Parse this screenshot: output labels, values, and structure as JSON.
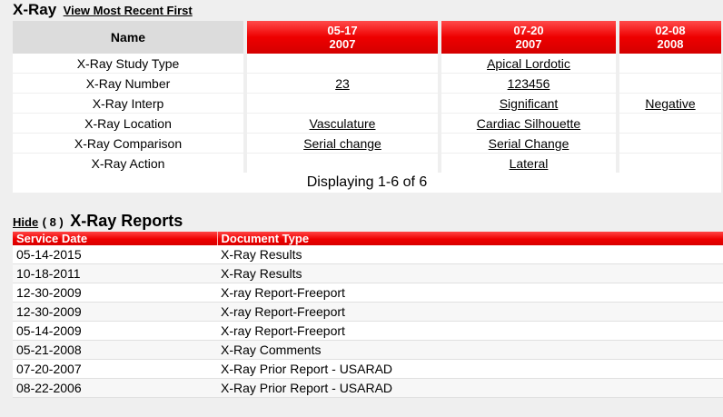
{
  "xray": {
    "title": "X-Ray",
    "view_link": "View Most Recent First"
  },
  "grid": {
    "name_header": "Name",
    "dates": [
      {
        "mmdd": "05-17",
        "year": "2007"
      },
      {
        "mmdd": "07-20",
        "year": "2007"
      },
      {
        "mmdd": "02-08",
        "year": "2008"
      }
    ],
    "rows": [
      {
        "label": "X-Ray Study Type",
        "values": [
          "",
          "Apical Lordotic",
          ""
        ]
      },
      {
        "label": "X-Ray Number",
        "values": [
          "23",
          "123456",
          ""
        ]
      },
      {
        "label": "X-Ray Interp",
        "values": [
          "",
          "Significant",
          "Negative"
        ]
      },
      {
        "label": "X-Ray Location",
        "values": [
          "Vasculature",
          "Cardiac Silhouette",
          ""
        ]
      },
      {
        "label": "X-Ray Comparison",
        "values": [
          "Serial change",
          "Serial Change",
          ""
        ]
      },
      {
        "label": "X-Ray Action",
        "values": [
          "",
          "Lateral",
          ""
        ]
      }
    ],
    "displaying": "Displaying 1-6 of 6"
  },
  "reports": {
    "hide_label": "Hide",
    "count": "( 8 )",
    "title": "X-Ray Reports",
    "columns": [
      "Service Date",
      "Document Type"
    ],
    "rows": [
      {
        "date": "05-14-2015",
        "type": "X-Ray Results"
      },
      {
        "date": "10-18-2011",
        "type": "X-Ray Results"
      },
      {
        "date": "12-30-2009",
        "type": "X-ray Report-Freeport"
      },
      {
        "date": "12-30-2009",
        "type": "X-ray Report-Freeport"
      },
      {
        "date": "05-14-2009",
        "type": "X-ray Report-Freeport"
      },
      {
        "date": "05-21-2008",
        "type": "X-Ray Comments"
      },
      {
        "date": "07-20-2007",
        "type": "X-Ray Prior Report - USARAD"
      },
      {
        "date": "08-22-2006",
        "type": "X-Ray Prior Report - USARAD"
      }
    ]
  }
}
